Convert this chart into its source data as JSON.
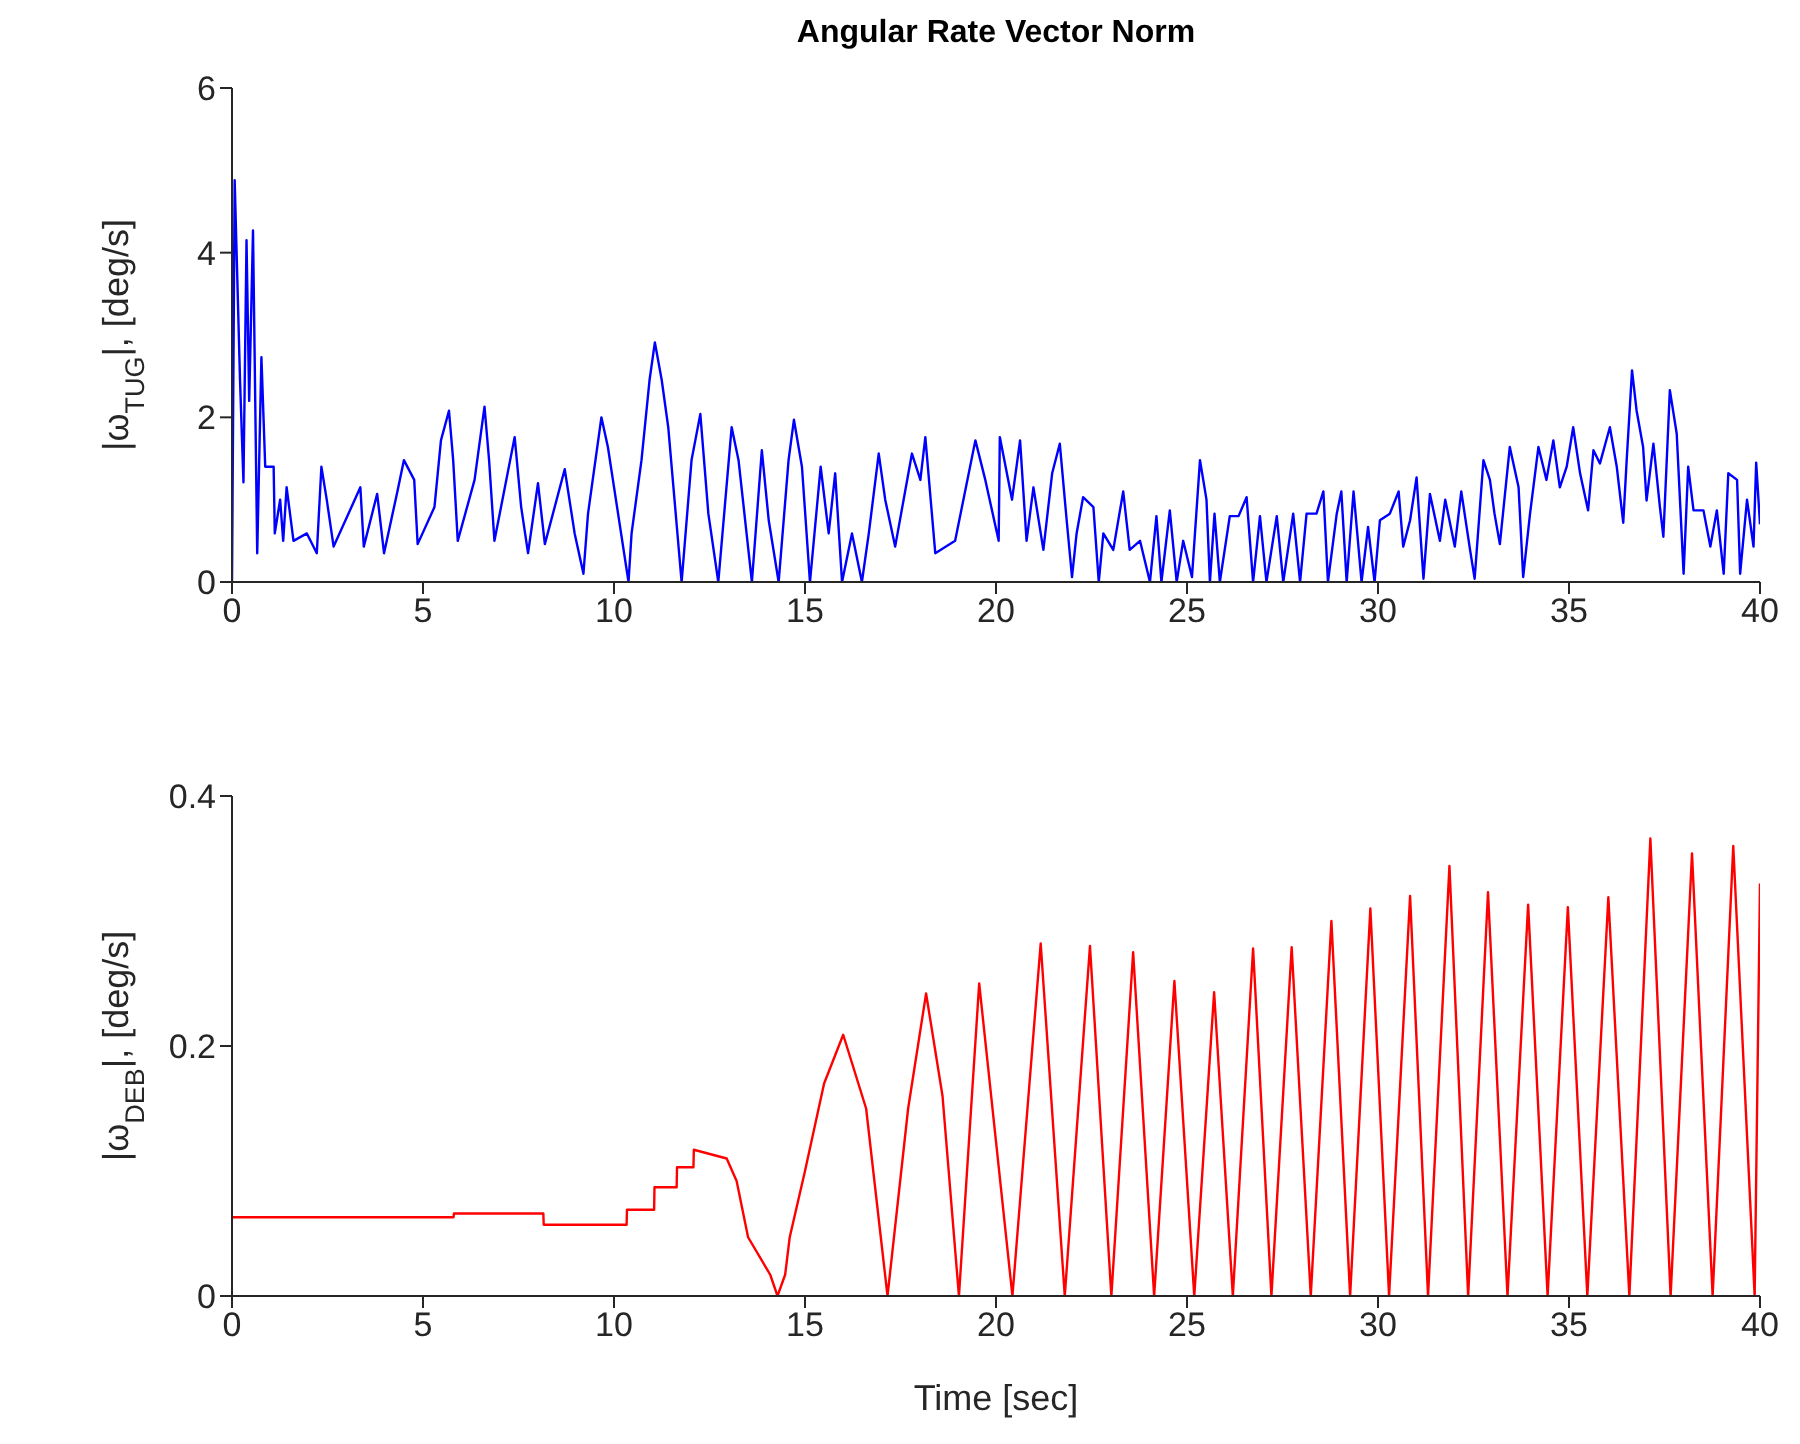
{
  "chart_data": [
    {
      "type": "line",
      "title": "Angular Rate Vector Norm",
      "ylabel": "|ω$_{TUG}$|, [deg/s]",
      "xlim": [
        0,
        40
      ],
      "xticks": [
        0,
        5,
        10,
        15,
        20,
        25,
        30,
        35,
        40
      ],
      "ylim": [
        0,
        6
      ],
      "yticks": [
        0,
        2,
        4,
        6
      ],
      "series": [
        {
          "color": "#0000ff",
          "x": [
            0,
            0.07,
            0.21,
            0.3,
            0.38,
            0.45,
            0.55,
            0.66,
            0.77,
            0.87,
            1.09,
            1.12,
            1.26,
            1.34,
            1.43,
            1.61,
            1.96,
            2.22,
            2.34,
            2.48,
            2.66,
            3.36,
            3.45,
            3.8,
            3.98,
            4.33,
            4.5,
            4.77,
            4.86,
            5.3,
            5.47,
            5.68,
            5.79,
            5.91,
            6.35,
            6.61,
            6.73,
            6.87,
            7.4,
            7.57,
            7.75,
            8.01,
            8.19,
            8.71,
            8.97,
            9.2,
            9.32,
            9.67,
            9.84,
            10.38,
            10.46,
            10.72,
            10.93,
            11.07,
            11.25,
            11.42,
            11.77,
            12.03,
            12.26,
            12.47,
            12.73,
            13.08,
            13.26,
            13.61,
            13.87,
            14.05,
            14.31,
            14.57,
            14.71,
            14.92,
            15.13,
            15.41,
            15.62,
            15.79,
            15.97,
            16.23,
            16.49,
            16.67,
            16.93,
            17.1,
            17.36,
            17.8,
            18.02,
            18.15,
            18.41,
            18.93,
            19.46,
            19.72,
            20.07,
            20.1,
            20.42,
            20.63,
            20.8,
            20.98,
            21.24,
            21.47,
            21.67,
            21.85,
            21.99,
            22.11,
            22.28,
            22.55,
            22.69,
            22.81,
            23.07,
            23.33,
            23.5,
            23.77,
            24.03,
            24.2,
            24.33,
            24.55,
            24.73,
            24.9,
            25.13,
            25.34,
            25.51,
            25.6,
            25.72,
            25.86,
            26.12,
            26.35,
            26.56,
            26.73,
            26.91,
            27.08,
            27.35,
            27.52,
            27.78,
            27.96,
            28.13,
            28.39,
            28.57,
            28.69,
            28.92,
            29.04,
            29.18,
            29.36,
            29.57,
            29.74,
            29.91,
            30.05,
            30.31,
            30.54,
            30.66,
            30.84,
            31.01,
            31.19,
            31.36,
            31.62,
            31.76,
            32.01,
            32.18,
            32.41,
            32.53,
            32.76,
            32.93,
            33.05,
            33.19,
            33.45,
            33.68,
            33.8,
            33.98,
            34.2,
            34.41,
            34.59,
            34.76,
            34.94,
            35.11,
            35.29,
            35.5,
            35.64,
            35.81,
            36.07,
            36.25,
            36.42,
            36.51,
            36.65,
            36.77,
            36.94,
            37.03,
            37.21,
            37.38,
            37.47,
            37.64,
            37.82,
            38.0,
            38.12,
            38.26,
            38.52,
            38.7,
            38.87,
            39.05,
            39.17,
            39.4,
            39.48,
            39.66,
            39.83,
            39.9,
            40
          ],
          "values": [
            0,
            4.88,
            2.45,
            1.21,
            4.15,
            2.2,
            4.27,
            0.35,
            2.73,
            1.4,
            1.4,
            0.59,
            1.0,
            0.5,
            1.15,
            0.5,
            0.59,
            0.35,
            1.4,
            1.0,
            0.43,
            1.15,
            0.43,
            1.07,
            0.35,
            1.1,
            1.48,
            1.24,
            0.46,
            0.91,
            1.72,
            2.08,
            1.48,
            0.5,
            1.24,
            2.13,
            1.48,
            0.5,
            1.76,
            0.91,
            0.35,
            1.2,
            0.46,
            1.37,
            0.59,
            0.1,
            0.83,
            2.0,
            1.64,
            0,
            0.59,
            1.48,
            2.45,
            2.91,
            2.45,
            1.88,
            0,
            1.48,
            2.04,
            0.83,
            0,
            1.88,
            1.48,
            0,
            1.6,
            0.75,
            0,
            1.48,
            1.97,
            1.4,
            0,
            1.4,
            0.59,
            1.32,
            0,
            0.59,
            0,
            0.59,
            1.56,
            1.0,
            0.43,
            1.56,
            1.24,
            1.76,
            0.35,
            0.5,
            1.72,
            1.24,
            0.5,
            1.76,
            1.0,
            1.72,
            0.5,
            1.15,
            0.39,
            1.32,
            1.68,
            0.75,
            0.06,
            0.59,
            1.03,
            0.91,
            0,
            0.59,
            0.39,
            1.1,
            0.39,
            0.5,
            0,
            0.8,
            0,
            0.87,
            0,
            0.5,
            0.06,
            1.48,
            1.0,
            0,
            0.83,
            0,
            0.8,
            0.8,
            1.03,
            0,
            0.8,
            0,
            0.8,
            0,
            0.83,
            0,
            0.83,
            0.83,
            1.1,
            0,
            0.83,
            1.1,
            0,
            1.1,
            0,
            0.67,
            0,
            0.75,
            0.83,
            1.1,
            0.43,
            0.75,
            1.27,
            0.04,
            1.07,
            0.5,
            1.0,
            0.43,
            1.1,
            0.39,
            0.04,
            1.48,
            1.24,
            0.83,
            0.46,
            1.64,
            1.15,
            0.06,
            0.83,
            1.64,
            1.24,
            1.72,
            1.15,
            1.4,
            1.88,
            1.32,
            0.87,
            1.6,
            1.44,
            1.88,
            1.4,
            0.72,
            1.48,
            2.57,
            2.08,
            1.64,
            0.99,
            1.68,
            0.91,
            0.55,
            2.33,
            1.8,
            0.1,
            1.4,
            0.87,
            0.87,
            0.43,
            0.87,
            0.1,
            1.32,
            1.24,
            0.1,
            1.0,
            0.43,
            1.45,
            0.7
          ]
        }
      ]
    },
    {
      "type": "line",
      "xlabel": "Time [sec]",
      "ylabel": "|ω$_{DEB}$|, [deg/s]",
      "xlim": [
        0,
        40
      ],
      "xticks": [
        0,
        5,
        10,
        15,
        20,
        25,
        30,
        35,
        40
      ],
      "ylim": [
        0,
        0.4
      ],
      "yticks": [
        0,
        0.2,
        0.4
      ],
      "series": [
        {
          "color": "#ff0000",
          "x": [
            0,
            5.8,
            5.81,
            8.15,
            8.16,
            10.33,
            10.34,
            11.05,
            11.06,
            11.64,
            11.65,
            12.08,
            12.09,
            12.95,
            13.21,
            13.51,
            14.09,
            14.28,
            14.48,
            14.6,
            15.0,
            15.5,
            16.0,
            16.6,
            17.16,
            17.7,
            18.17,
            18.6,
            19.03,
            19.56,
            20.43,
            21.17,
            21.8,
            22.46,
            23.02,
            23.59,
            24.14,
            24.67,
            25.19,
            25.71,
            26.2,
            26.73,
            27.21,
            27.74,
            28.24,
            28.78,
            29.27,
            29.8,
            30.29,
            30.84,
            31.31,
            31.87,
            32.36,
            32.88,
            33.39,
            33.93,
            34.44,
            34.97,
            35.48,
            36.03,
            36.58,
            37.13,
            37.66,
            38.22,
            38.76,
            39.3,
            39.86,
            40
          ],
          "values": [
            0.063,
            0.063,
            0.066,
            0.066,
            0.057,
            0.057,
            0.069,
            0.069,
            0.087,
            0.087,
            0.103,
            0.103,
            0.117,
            0.11,
            0.092,
            0.047,
            0.017,
            0,
            0.017,
            0.047,
            0.1,
            0.17,
            0.209,
            0.15,
            0,
            0.15,
            0.242,
            0.16,
            0,
            0.25,
            0,
            0.282,
            0,
            0.28,
            0,
            0.275,
            0,
            0.252,
            0,
            0.243,
            0,
            0.278,
            0,
            0.279,
            0,
            0.3,
            0,
            0.31,
            0,
            0.32,
            0,
            0.344,
            0,
            0.323,
            0,
            0.313,
            0,
            0.311,
            0,
            0.319,
            0,
            0.366,
            0,
            0.354,
            0,
            0.36,
            0,
            0.33
          ]
        }
      ]
    }
  ]
}
